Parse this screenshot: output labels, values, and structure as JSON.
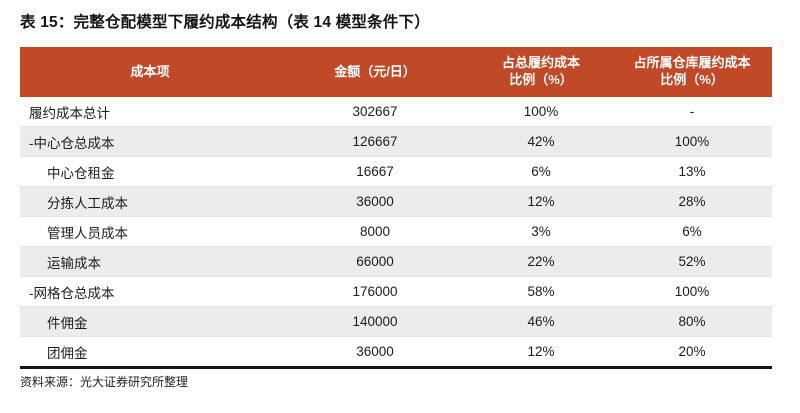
{
  "title": "表 15：完整仓配模型下履约成本结构（表 14 模型条件下）",
  "table": {
    "headers": [
      "成本项",
      "金额（元/日）",
      "占总履约成本\n比例（%）",
      "占所属仓库履约成本\n比例（%）"
    ],
    "rows": [
      {
        "label": "履约成本总计",
        "indent": 0,
        "amount": "302667",
        "pct_total": "100%",
        "pct_warehouse": "-"
      },
      {
        "label": "-中心仓总成本",
        "indent": 0,
        "amount": "126667",
        "pct_total": "42%",
        "pct_warehouse": "100%"
      },
      {
        "label": "中心仓租金",
        "indent": 1,
        "amount": "16667",
        "pct_total": "6%",
        "pct_warehouse": "13%"
      },
      {
        "label": "分拣人工成本",
        "indent": 1,
        "amount": "36000",
        "pct_total": "12%",
        "pct_warehouse": "28%"
      },
      {
        "label": "管理人员成本",
        "indent": 1,
        "amount": "8000",
        "pct_total": "3%",
        "pct_warehouse": "6%"
      },
      {
        "label": "运输成本",
        "indent": 1,
        "amount": "66000",
        "pct_total": "22%",
        "pct_warehouse": "52%"
      },
      {
        "label": "-网格仓总成本",
        "indent": 0,
        "amount": "176000",
        "pct_total": "58%",
        "pct_warehouse": "100%"
      },
      {
        "label": "件佣金",
        "indent": 1,
        "amount": "140000",
        "pct_total": "46%",
        "pct_warehouse": "80%"
      },
      {
        "label": "团佣金",
        "indent": 1,
        "amount": "36000",
        "pct_total": "12%",
        "pct_warehouse": "20%"
      }
    ]
  },
  "source": "资料来源：光大证券研究所整理",
  "colors": {
    "header_bg": "#c04a28",
    "header_text": "#ffffff",
    "row_alt_bg": "#ececec",
    "title_text": "#151515",
    "bottom_rule": "#151515"
  }
}
